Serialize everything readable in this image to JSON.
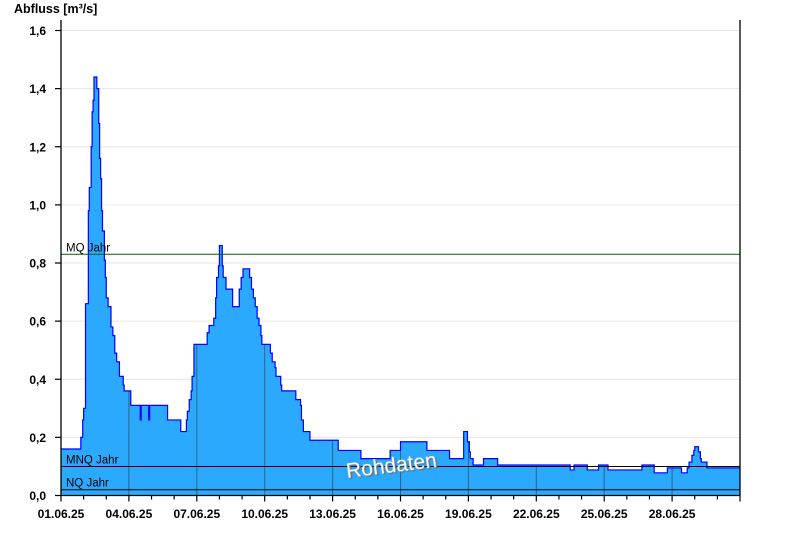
{
  "chart_data": {
    "type": "area",
    "step": true,
    "ylabel": "Abfluss [m³/s]",
    "xlabel": "",
    "ylim": [
      0,
      1.6
    ],
    "xlim": [
      "01.06.25 00:00",
      "01.07.25 00:00"
    ],
    "y_ticks": [
      "0,0",
      "0,2",
      "0,4",
      "0,6",
      "0,8",
      "1,0",
      "1,2",
      "1,4",
      "1,6"
    ],
    "y_tick_values": [
      0,
      0.2,
      0.4,
      0.6,
      0.8,
      1.0,
      1.2,
      1.4,
      1.6
    ],
    "x_ticks": [
      "01.06.25",
      "04.06.25",
      "07.06.25",
      "10.06.25",
      "13.06.25",
      "16.06.25",
      "19.06.25",
      "22.06.25",
      "25.06.25",
      "28.06.25"
    ],
    "grid": {
      "horizontal": true,
      "vertical_major": true
    },
    "colors": {
      "fill": "#2aa9ff",
      "line": "#0000ff",
      "mq_line": "#006400",
      "ref_line": "#000000",
      "grid": "#e6e6e6",
      "vgrid": "#2f6485"
    },
    "reference_lines": [
      {
        "label": "MQ Jahr",
        "value": 0.83
      },
      {
        "label": "MNQ Jahr",
        "value": 0.1
      },
      {
        "label": "NQ Jahr",
        "value": 0.02
      }
    ],
    "watermark": "Rohdaten",
    "series": [
      {
        "points": [
          [
            "01.06.25 00:00",
            0.16
          ],
          [
            "01.06.25 21:00",
            0.2
          ],
          [
            "01.06.25 23:00",
            0.26
          ],
          [
            "02.06.25 00:00",
            0.3
          ],
          [
            "02.06.25 02:00",
            0.66
          ],
          [
            "02.06.25 05:00",
            0.98
          ],
          [
            "02.06.25 06:00",
            1.06
          ],
          [
            "02.06.25 08:00",
            1.2
          ],
          [
            "02.06.25 09:00",
            1.32
          ],
          [
            "02.06.25 10:00",
            1.36
          ],
          [
            "02.06.25 11:00",
            1.44
          ],
          [
            "02.06.25 14:00",
            1.4
          ],
          [
            "02.06.25 16:00",
            1.28
          ],
          [
            "02.06.25 17:00",
            1.16
          ],
          [
            "02.06.25 18:00",
            1.09
          ],
          [
            "02.06.25 19:00",
            0.98
          ],
          [
            "02.06.25 20:00",
            0.91
          ],
          [
            "02.06.25 22:00",
            0.81
          ],
          [
            "02.06.25 23:00",
            0.75
          ],
          [
            "03.06.25 00:00",
            0.68
          ],
          [
            "03.06.25 02:00",
            0.65
          ],
          [
            "03.06.25 05:00",
            0.58
          ],
          [
            "03.06.25 07:00",
            0.55
          ],
          [
            "03.06.25 09:00",
            0.49
          ],
          [
            "03.06.25 11:00",
            0.46
          ],
          [
            "03.06.25 14:00",
            0.41
          ],
          [
            "03.06.25 18:00",
            0.38
          ],
          [
            "03.06.25 19:00",
            0.36
          ],
          [
            "04.06.25 02:00",
            0.31
          ],
          [
            "04.06.25 12:00",
            0.26
          ],
          [
            "04.06.25 13:00",
            0.31
          ],
          [
            "04.06.25 21:00",
            0.26
          ],
          [
            "04.06.25 22:00",
            0.31
          ],
          [
            "05.06.25 17:00",
            0.26
          ],
          [
            "06.06.25 07:00",
            0.22
          ],
          [
            "06.06.25 13:00",
            0.26
          ],
          [
            "06.06.25 14:00",
            0.29
          ],
          [
            "06.06.25 16:00",
            0.33
          ],
          [
            "06.06.25 18:00",
            0.36
          ],
          [
            "06.06.25 19:00",
            0.41
          ],
          [
            "06.06.25 21:00",
            0.52
          ],
          [
            "07.06.25 11:00",
            0.56
          ],
          [
            "07.06.25 13:00",
            0.585
          ],
          [
            "07.06.25 18:00",
            0.61
          ],
          [
            "07.06.25 20:00",
            0.68
          ],
          [
            "07.06.25 21:00",
            0.75
          ],
          [
            "07.06.25 23:00",
            0.79
          ],
          [
            "08.06.25 00:00",
            0.86
          ],
          [
            "08.06.25 03:00",
            0.79
          ],
          [
            "08.06.25 04:00",
            0.75
          ],
          [
            "08.06.25 07:00",
            0.71
          ],
          [
            "08.06.25 14:00",
            0.65
          ],
          [
            "08.06.25 21:00",
            0.71
          ],
          [
            "08.06.25 23:00",
            0.75
          ],
          [
            "09.06.25 01:00",
            0.78
          ],
          [
            "09.06.25 08:00",
            0.75
          ],
          [
            "09.06.25 10:00",
            0.71
          ],
          [
            "09.06.25 12:00",
            0.68
          ],
          [
            "09.06.25 14:00",
            0.65
          ],
          [
            "09.06.25 16:00",
            0.61
          ],
          [
            "09.06.25 18:00",
            0.585
          ],
          [
            "09.06.25 20:00",
            0.55
          ],
          [
            "09.06.25 21:00",
            0.52
          ],
          [
            "10.06.25 06:00",
            0.49
          ],
          [
            "10.06.25 08:00",
            0.46
          ],
          [
            "10.06.25 11:00",
            0.44
          ],
          [
            "10.06.25 12:00",
            0.41
          ],
          [
            "10.06.25 17:00",
            0.38
          ],
          [
            "10.06.25 18:00",
            0.36
          ],
          [
            "11.06.25 09:00",
            0.33
          ],
          [
            "11.06.25 14:00",
            0.31
          ],
          [
            "11.06.25 15:00",
            0.26
          ],
          [
            "11.06.25 17:00",
            0.22
          ],
          [
            "12.06.25 00:00",
            0.19
          ],
          [
            "13.06.25 06:00",
            0.155
          ],
          [
            "14.06.25 06:00",
            0.127
          ],
          [
            "15.06.25 13:00",
            0.155
          ],
          [
            "16.06.25 00:00",
            0.185
          ],
          [
            "17.06.25 04:00",
            0.155
          ],
          [
            "18.06.25 04:00",
            0.127
          ],
          [
            "18.06.25 19:00",
            0.22
          ],
          [
            "18.06.25 23:00",
            0.185
          ],
          [
            "19.06.25 01:00",
            0.15
          ],
          [
            "19.06.25 02:00",
            0.127
          ],
          [
            "19.06.25 05:00",
            0.105
          ],
          [
            "19.06.25 16:00",
            0.127
          ],
          [
            "20.06.25 07:00",
            0.105
          ],
          [
            "23.06.25 12:00",
            0.088
          ],
          [
            "23.06.25 16:00",
            0.105
          ],
          [
            "24.06.25 06:00",
            0.088
          ],
          [
            "24.06.25 18:00",
            0.105
          ],
          [
            "25.06.25 04:00",
            0.088
          ],
          [
            "26.06.25 16:00",
            0.105
          ],
          [
            "27.06.25 05:00",
            0.078
          ],
          [
            "27.06.25 19:00",
            0.095
          ],
          [
            "28.06.25 10:00",
            0.078
          ],
          [
            "28.06.25 16:00",
            0.095
          ],
          [
            "28.06.25 18:00",
            0.115
          ],
          [
            "28.06.25 21:00",
            0.138
          ],
          [
            "28.06.25 23:00",
            0.155
          ],
          [
            "29.06.25 00:00",
            0.168
          ],
          [
            "29.06.25 04:00",
            0.15
          ],
          [
            "29.06.25 06:00",
            0.127
          ],
          [
            "29.06.25 07:00",
            0.115
          ],
          [
            "29.06.25 13:00",
            0.095
          ]
        ]
      }
    ]
  }
}
